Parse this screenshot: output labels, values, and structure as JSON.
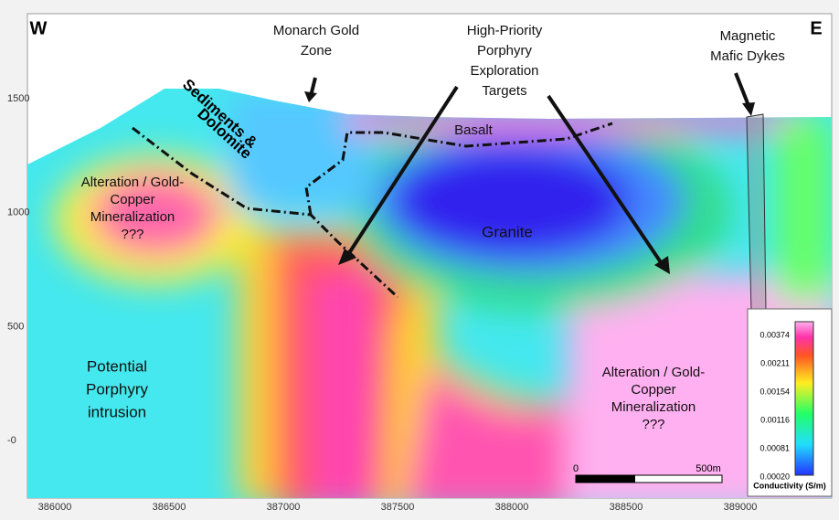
{
  "header": {
    "west": "W",
    "east": "E"
  },
  "annotations": {
    "monarch": [
      "Monarch Gold",
      "Zone"
    ],
    "targets": [
      "High-Priority",
      "Porphyry",
      "Exploration",
      "Targets"
    ],
    "dykes": [
      "Magnetic",
      "Mafic Dykes"
    ],
    "sediments": [
      "Sediments &",
      "Dolomite"
    ],
    "basalt": "Basalt",
    "granite": "Granite",
    "alteration_left": [
      "Alteration / Gold-",
      "Copper",
      "Mineralization",
      "???"
    ],
    "porphyry": [
      "Potential",
      "Porphyry",
      "intrusion"
    ],
    "alteration_right": [
      "Alteration / Gold-",
      "Copper",
      "Mineralization",
      "???"
    ]
  },
  "x_axis": {
    "ticks": [
      "386000",
      "386500",
      "387000",
      "387500",
      "388000",
      "388500",
      "389000"
    ]
  },
  "y_axis": {
    "ticks": [
      "1500",
      "1000",
      "500",
      "-0"
    ]
  },
  "colorbar": {
    "title": "Conductivity (S/m)",
    "ticks": [
      "0.00374",
      "0.00211",
      "0.00154",
      "0.00116",
      "0.00081",
      "0.00020"
    ]
  },
  "scale_bar": {
    "start": "0",
    "end": "500m"
  }
}
